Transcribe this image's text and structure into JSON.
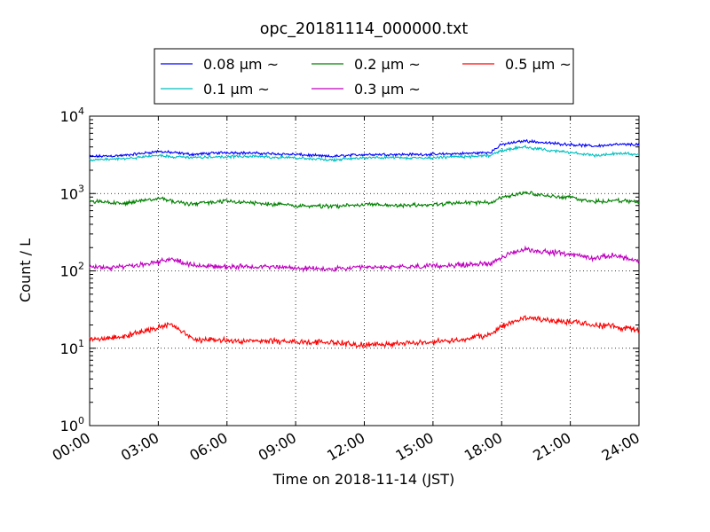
{
  "chart_data": {
    "type": "line",
    "title": "opc_20181114_000000.txt",
    "xlabel": "Time on 2018-11-14 (JST)",
    "ylabel": "Count / L",
    "y_scale": "log",
    "ylim": [
      1,
      10000
    ],
    "xlim": [
      "00:00",
      "24:00"
    ],
    "x_ticks": [
      "00:00",
      "03:00",
      "06:00",
      "09:00",
      "12:00",
      "15:00",
      "18:00",
      "21:00",
      "24:00"
    ],
    "y_ticks": [
      {
        "base": "10",
        "exp": "0"
      },
      {
        "base": "10",
        "exp": "1"
      },
      {
        "base": "10",
        "exp": "2"
      },
      {
        "base": "10",
        "exp": "3"
      },
      {
        "base": "10",
        "exp": "4"
      }
    ],
    "grid": true,
    "legend_position": "top-center",
    "x_hours": [
      0,
      1.5,
      3,
      3.5,
      4.5,
      6,
      7.5,
      9,
      10.5,
      12,
      13.5,
      15,
      16.5,
      17.5,
      18,
      19,
      20,
      21,
      22,
      23,
      24
    ],
    "series": [
      {
        "name": "0.08 μm ~",
        "color": "#0000ff",
        "values": [
          3000,
          3100,
          3500,
          3400,
          3200,
          3400,
          3300,
          3200,
          3000,
          3200,
          3200,
          3200,
          3300,
          3400,
          4300,
          4800,
          4500,
          4300,
          4100,
          4300,
          4300
        ]
      },
      {
        "name": "0.1 μm ~",
        "color": "#00bfbf",
        "values": [
          2700,
          2800,
          3100,
          3000,
          2900,
          3000,
          3000,
          2900,
          2700,
          2900,
          2900,
          2900,
          3000,
          3100,
          3600,
          4000,
          3600,
          3400,
          3100,
          3300,
          3200
        ]
      },
      {
        "name": "0.2 μm ~",
        "color": "#008000",
        "values": [
          800,
          740,
          880,
          800,
          730,
          800,
          740,
          700,
          680,
          720,
          700,
          720,
          760,
          770,
          880,
          1050,
          920,
          900,
          780,
          820,
          770
        ]
      },
      {
        "name": "0.3 μm ~",
        "color": "#bf00bf",
        "values": [
          110,
          112,
          130,
          145,
          118,
          112,
          115,
          108,
          105,
          110,
          112,
          115,
          120,
          125,
          150,
          190,
          175,
          165,
          145,
          160,
          130
        ]
      },
      {
        "name": "0.5 μm ~",
        "color": "#ff0000",
        "values": [
          13,
          14,
          19,
          21,
          13,
          12.5,
          12.5,
          12,
          12,
          11,
          11.5,
          12,
          13,
          15,
          19,
          25,
          23,
          22,
          20,
          19,
          17
        ]
      }
    ]
  }
}
